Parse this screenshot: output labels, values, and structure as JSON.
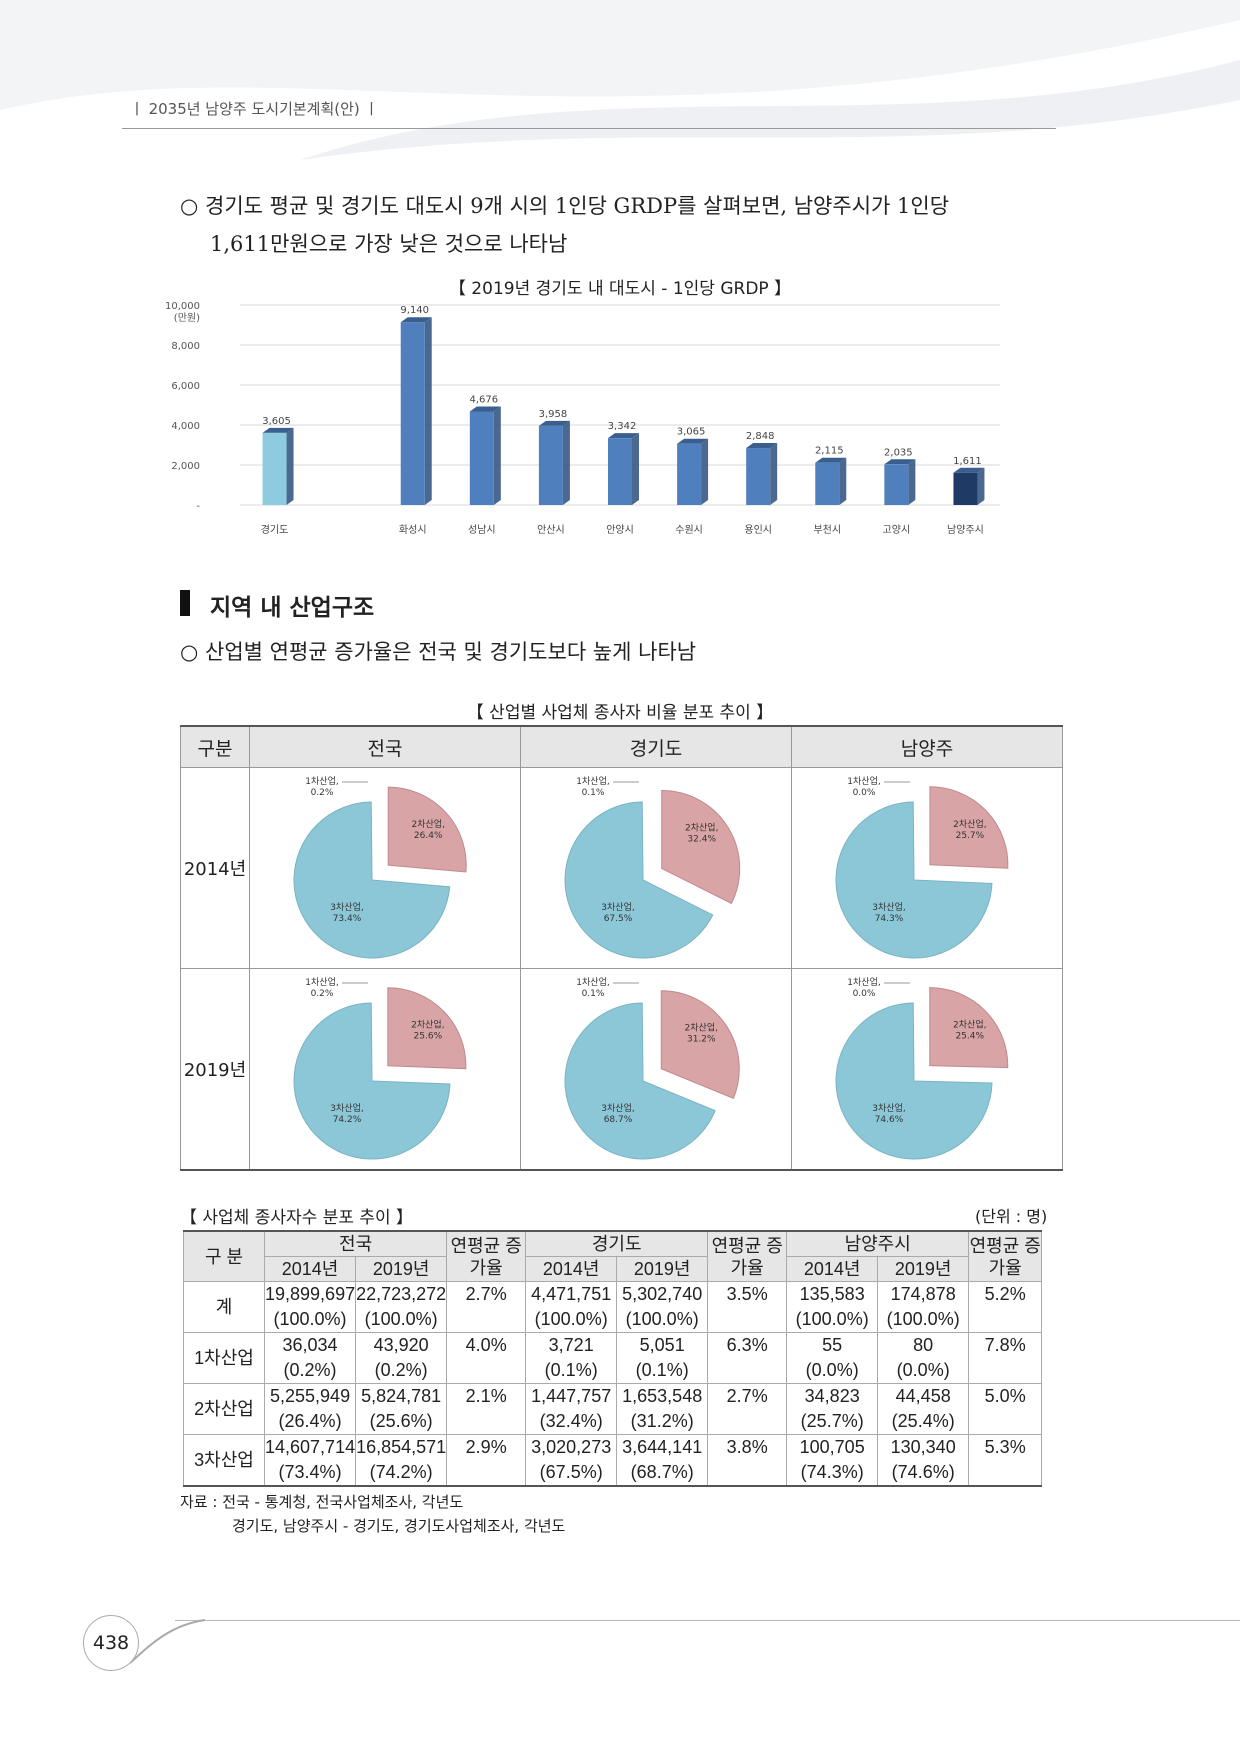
{
  "header": {
    "running_title": "ㅣ 2035년 남양주 도시기본계획(안) ㅣ"
  },
  "intro": {
    "line1": "○ 경기도 평균 및 경기도 대도시 9개 시의 1인당 GRDP를 살펴보면, 남양주시가 1인당",
    "line2": "1,611만원으로 가장 낮은 것으로 나타남"
  },
  "grdp_caption": "【 2019년 경기도 내 대도시 - 1인당 GRDP 】",
  "chart_data": {
    "type": "bar",
    "title": "【 2019년 경기도 내 대도시 - 1인당 GRDP 】",
    "ylabel": "(만원)",
    "ylim": [
      0,
      10000
    ],
    "yticks": [
      "-",
      "2,000",
      "4,000",
      "6,000",
      "8,000",
      "10,000"
    ],
    "categories": [
      "경기도",
      "화성시",
      "성남시",
      "안산시",
      "안양시",
      "수원시",
      "용인시",
      "부천시",
      "고양시",
      "남양주시"
    ],
    "values": [
      3605,
      9140,
      4676,
      3958,
      3342,
      3065,
      2848,
      2115,
      2035,
      1611
    ],
    "labels": [
      "3,605",
      "9,140",
      "4,676",
      "3,958",
      "3,342",
      "3,065",
      "2,848",
      "2,115",
      "2,035",
      "1,611"
    ],
    "colors": {
      "gyeonggi": "#8ecae0",
      "city": "#4f80bd",
      "namyangju": "#1f3a64"
    },
    "grid": true
  },
  "section": {
    "title": "지역 내 산업구조",
    "bullet": "○ 산업별 연평균 증가율은 전국 및 경기도보다 높게 나타남"
  },
  "pie_caption": "【 산업별 사업체 종사자 비율 분포 추이 】",
  "pie_table": {
    "headers": [
      "구분",
      "전국",
      "경기도",
      "남양주"
    ],
    "rows": [
      {
        "year": "2014년",
        "pies": [
          {
            "p1": "1차산업, 0.2%",
            "p2": "2차산업, 26.4%",
            "p3": "3차산업, 73.4%",
            "v2": 26.4
          },
          {
            "p1": "1차산업, 0.1%",
            "p2": "2차산업, 32.4%",
            "p3": "3차산업, 67.5%",
            "v2": 32.4
          },
          {
            "p1": "1차산업, 0.0%",
            "p2": "2차산업, 25.7%",
            "p3": "3차산업, 74.3%",
            "v2": 25.7
          }
        ]
      },
      {
        "year": "2019년",
        "pies": [
          {
            "p1": "1차산업, 0.2%",
            "p2": "2차산업, 25.6%",
            "p3": "3차산업, 74.2%",
            "v2": 25.6
          },
          {
            "p1": "1차산업, 0.1%",
            "p2": "2차산업, 31.2%",
            "p3": "3차산업, 68.7%",
            "v2": 31.2
          },
          {
            "p1": "1차산업, 0.0%",
            "p2": "2차산업, 25.4%",
            "p3": "3차산업, 74.6%",
            "v2": 25.4
          }
        ]
      }
    ],
    "colors": {
      "tertiary": "#8cc7d8",
      "secondary": "#d9a4a6"
    }
  },
  "data_table": {
    "title": "【 사업체 종사자수 분포 추이 】",
    "unit": "(단위 : 명)",
    "h_gubun": "구 분",
    "h_national": "전국",
    "h_gyeonggi": "경기도",
    "h_namyangju": "남양주시",
    "h_rate": "연평균 증가율",
    "h_2014": "2014년",
    "h_2019": "2019년",
    "rows": [
      {
        "label": "계",
        "n14": "19,899,697",
        "n14p": "(100.0%)",
        "n19": "22,723,272",
        "n19p": "(100.0%)",
        "nr": "2.7%",
        "g14": "4,471,751",
        "g14p": "(100.0%)",
        "g19": "5,302,740",
        "g19p": "(100.0%)",
        "gr": "3.5%",
        "y14": "135,583",
        "y14p": "(100.0%)",
        "y19": "174,878",
        "y19p": "(100.0%)",
        "yr": "5.2%"
      },
      {
        "label": "1차산업",
        "n14": "36,034",
        "n14p": "(0.2%)",
        "n19": "43,920",
        "n19p": "(0.2%)",
        "nr": "4.0%",
        "g14": "3,721",
        "g14p": "(0.1%)",
        "g19": "5,051",
        "g19p": "(0.1%)",
        "gr": "6.3%",
        "y14": "55",
        "y14p": "(0.0%)",
        "y19": "80",
        "y19p": "(0.0%)",
        "yr": "7.8%"
      },
      {
        "label": "2차산업",
        "n14": "5,255,949",
        "n14p": "(26.4%)",
        "n19": "5,824,781",
        "n19p": "(25.6%)",
        "nr": "2.1%",
        "g14": "1,447,757",
        "g14p": "(32.4%)",
        "g19": "1,653,548",
        "g19p": "(31.2%)",
        "gr": "2.7%",
        "y14": "34,823",
        "y14p": "(25.7%)",
        "y19": "44,458",
        "y19p": "(25.4%)",
        "yr": "5.0%"
      },
      {
        "label": "3차산업",
        "n14": "14,607,714",
        "n14p": "(73.4%)",
        "n19": "16,854,571",
        "n19p": "(74.2%)",
        "nr": "2.9%",
        "g14": "3,020,273",
        "g14p": "(67.5%)",
        "g19": "3,644,141",
        "g19p": "(68.7%)",
        "gr": "3.8%",
        "y14": "100,705",
        "y14p": "(74.3%)",
        "y19": "130,340",
        "y19p": "(74.6%)",
        "yr": "5.3%"
      }
    ],
    "source1": "자료 : 전국 - 통계청, 전국사업체조사, 각년도",
    "source2": "경기도, 남양주시 - 경기도, 경기도사업체조사, 각년도"
  },
  "footer": {
    "page_number": "438"
  }
}
